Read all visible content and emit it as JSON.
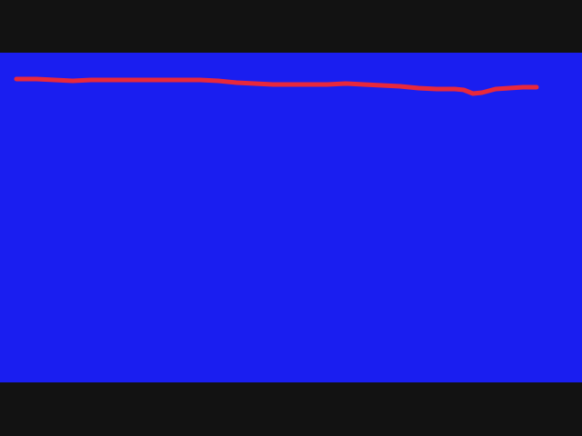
{
  "colors": {
    "letterbox": "#121212",
    "canvas": "#1a1ef0",
    "stroke": "#e8283c"
  },
  "stroke": {
    "shape": "freehand-line"
  }
}
